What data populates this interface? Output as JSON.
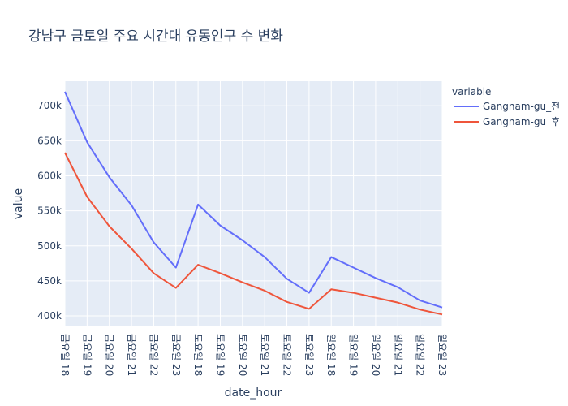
{
  "chart_data": {
    "type": "line",
    "title": "강남구 금토일 주요 시간대 유동인구 수 변화",
    "xlabel": "date_hour",
    "ylabel": "value",
    "x": [
      "금요일 18",
      "금요일 19",
      "금요일 20",
      "금요일 21",
      "금요일 22",
      "금요일 23",
      "토요일 18",
      "토요일 19",
      "토요일 20",
      "토요일 21",
      "토요일 22",
      "토요일 23",
      "일요일 18",
      "일요일 19",
      "일요일 20",
      "일요일 21",
      "일요일 22",
      "일요일 23"
    ],
    "ylim": [
      385000,
      735000
    ],
    "yticks": [
      400000,
      450000,
      500000,
      550000,
      600000,
      650000,
      700000
    ],
    "ytick_labels": [
      "400k",
      "450k",
      "500k",
      "550k",
      "600k",
      "650k",
      "700k"
    ],
    "grid": true,
    "legend": {
      "title": "variable",
      "placement": "right"
    },
    "series": [
      {
        "name": "Gangnam-gu_전",
        "color": "#636efa",
        "values": [
          720000,
          648000,
          598000,
          558000,
          505000,
          469000,
          559000,
          529000,
          508000,
          484000,
          453000,
          433000,
          484000,
          469000,
          454000,
          441000,
          422000,
          412000
        ]
      },
      {
        "name": "Gangnam-gu_후",
        "color": "#ef553b",
        "values": [
          633000,
          570000,
          528000,
          496000,
          461000,
          440000,
          473000,
          461000,
          448000,
          436000,
          420000,
          410000,
          438000,
          433000,
          426000,
          419000,
          409000,
          402000
        ]
      }
    ]
  }
}
